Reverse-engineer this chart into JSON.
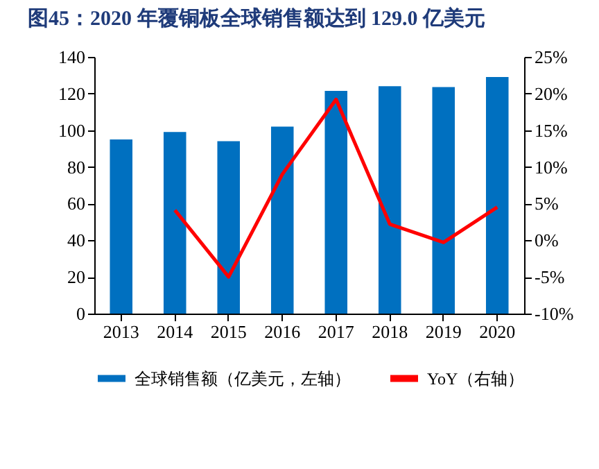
{
  "chart_data": {
    "type": "bar",
    "title": "图45：2020 年覆铜板全球销售额达到 129.0 亿美元",
    "categories": [
      "2013",
      "2014",
      "2015",
      "2016",
      "2017",
      "2018",
      "2019",
      "2020"
    ],
    "series": [
      {
        "name": "全球销售额（亿美元，左轴）",
        "color": "#0070c0",
        "values": [
          95,
          99,
          94,
          102,
          121.5,
          124,
          123.5,
          129
        ]
      },
      {
        "name": "YoY（右轴）",
        "color": "#ff0000",
        "type": "line",
        "axis": "y2",
        "values": [
          null,
          4.1,
          -5,
          9,
          19.2,
          2.2,
          -0.3,
          4.5
        ]
      }
    ],
    "ylim": [
      0,
      140
    ],
    "yticks": [
      0,
      20,
      40,
      60,
      80,
      100,
      120,
      140
    ],
    "y2lim": [
      -10,
      25
    ],
    "y2ticks": [
      {
        "value": -10,
        "label": "-10%"
      },
      {
        "value": -5,
        "label": "-5%"
      },
      {
        "value": 0,
        "label": "0%"
      },
      {
        "value": 5,
        "label": "5%"
      },
      {
        "value": 10,
        "label": "10%"
      },
      {
        "value": 15,
        "label": "15%"
      },
      {
        "value": 20,
        "label": "20%"
      },
      {
        "value": 25,
        "label": "25%"
      }
    ],
    "grid": false,
    "legend": "bottom"
  }
}
